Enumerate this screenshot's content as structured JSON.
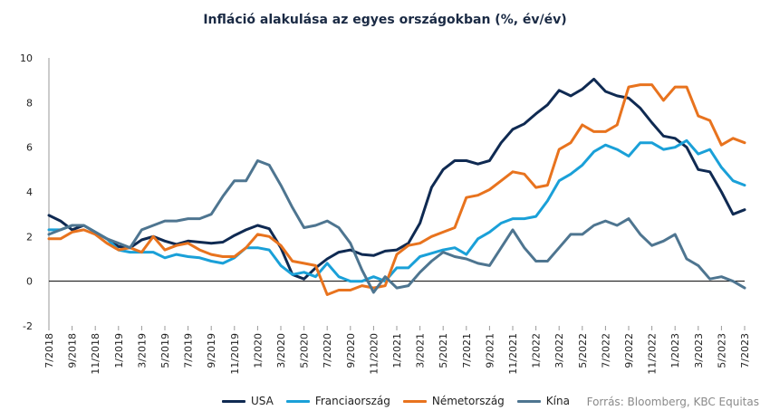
{
  "chart_data": {
    "type": "line",
    "title": "Infláció alakulása az egyes országokban (%, év/év)",
    "xlabel": "",
    "ylabel": "",
    "ylim": [
      -2,
      10
    ],
    "yticks": [
      "-2",
      "0",
      "2",
      "4",
      "6",
      "8",
      "10"
    ],
    "grid": false,
    "legend_position": "bottom",
    "source": "Forrás: Bloomberg, KBC Equitas",
    "x_tick_labels": [
      "7/2018",
      "9/2018",
      "11/2018",
      "1/2019",
      "3/2019",
      "5/2019",
      "7/2019",
      "9/2019",
      "11/2019",
      "1/2020",
      "3/2020",
      "5/2020",
      "7/2020",
      "9/2020",
      "11/2020",
      "1/2021",
      "3/2021",
      "5/2021",
      "7/2021",
      "9/2021",
      "11/2021",
      "1/2022",
      "3/2022",
      "5/2022",
      "7/2022",
      "9/2022",
      "11/2022",
      "1/2023",
      "3/2023",
      "5/2023",
      "7/2023"
    ],
    "x": [
      "7/2018",
      "8/2018",
      "9/2018",
      "10/2018",
      "11/2018",
      "12/2018",
      "1/2019",
      "2/2019",
      "3/2019",
      "4/2019",
      "5/2019",
      "6/2019",
      "7/2019",
      "8/2019",
      "9/2019",
      "10/2019",
      "11/2019",
      "12/2019",
      "1/2020",
      "2/2020",
      "3/2020",
      "4/2020",
      "5/2020",
      "6/2020",
      "7/2020",
      "8/2020",
      "9/2020",
      "10/2020",
      "11/2020",
      "12/2020",
      "1/2021",
      "2/2021",
      "3/2021",
      "4/2021",
      "5/2021",
      "6/2021",
      "7/2021",
      "8/2021",
      "9/2021",
      "10/2021",
      "11/2021",
      "12/2021",
      "1/2022",
      "2/2022",
      "3/2022",
      "4/2022",
      "5/2022",
      "6/2022",
      "7/2022",
      "8/2022",
      "9/2022",
      "10/2022",
      "11/2022",
      "12/2022",
      "1/2023",
      "2/2023",
      "3/2023",
      "4/2023",
      "5/2023",
      "6/2023",
      "7/2023"
    ],
    "series": [
      {
        "name": "USA",
        "color": "#0f2a52",
        "values": [
          2.95,
          2.7,
          2.3,
          2.5,
          2.2,
          1.9,
          1.55,
          1.5,
          1.85,
          2.0,
          1.8,
          1.65,
          1.8,
          1.75,
          1.7,
          1.75,
          2.05,
          2.3,
          2.5,
          2.35,
          1.5,
          0.3,
          0.1,
          0.6,
          1.0,
          1.3,
          1.4,
          1.2,
          1.15,
          1.35,
          1.4,
          1.7,
          2.6,
          4.2,
          5.0,
          5.4,
          5.4,
          5.25,
          5.4,
          6.2,
          6.8,
          7.05,
          7.5,
          7.9,
          8.55,
          8.3,
          8.6,
          9.05,
          8.5,
          8.3,
          8.2,
          7.75,
          7.1,
          6.5,
          6.4,
          6.0,
          5.0,
          4.9,
          4.0,
          3.0,
          3.2
        ]
      },
      {
        "name": "Franciaország",
        "color": "#1aa0d8",
        "values": [
          2.3,
          2.3,
          2.5,
          2.5,
          2.2,
          1.9,
          1.4,
          1.3,
          1.3,
          1.3,
          1.05,
          1.2,
          1.1,
          1.05,
          0.9,
          0.8,
          1.05,
          1.5,
          1.5,
          1.4,
          0.7,
          0.3,
          0.4,
          0.2,
          0.8,
          0.2,
          0.0,
          0.0,
          0.2,
          0.0,
          0.6,
          0.6,
          1.1,
          1.25,
          1.4,
          1.5,
          1.2,
          1.9,
          2.2,
          2.6,
          2.8,
          2.8,
          2.9,
          3.6,
          4.5,
          4.8,
          5.2,
          5.8,
          6.1,
          5.9,
          5.6,
          6.2,
          6.2,
          5.9,
          6.0,
          6.3,
          5.7,
          5.9,
          5.1,
          4.5,
          4.3
        ]
      },
      {
        "name": "Németország",
        "color": "#e8731e",
        "values": [
          1.9,
          1.9,
          2.2,
          2.3,
          2.1,
          1.7,
          1.4,
          1.5,
          1.3,
          2.0,
          1.4,
          1.6,
          1.7,
          1.4,
          1.2,
          1.1,
          1.1,
          1.5,
          2.1,
          2.0,
          1.6,
          0.9,
          0.8,
          0.7,
          -0.6,
          -0.4,
          -0.4,
          -0.2,
          -0.3,
          -0.2,
          1.2,
          1.6,
          1.7,
          2.0,
          2.2,
          2.4,
          3.75,
          3.85,
          4.1,
          4.5,
          4.9,
          4.8,
          4.2,
          4.3,
          5.9,
          6.2,
          7.0,
          6.7,
          6.7,
          7.0,
          8.7,
          8.8,
          8.8,
          8.1,
          8.7,
          8.7,
          7.4,
          7.2,
          6.1,
          6.4,
          6.2
        ]
      },
      {
        "name": "Kína",
        "color": "#4e7590",
        "values": [
          2.1,
          2.3,
          2.5,
          2.5,
          2.2,
          1.9,
          1.7,
          1.5,
          2.3,
          2.5,
          2.7,
          2.7,
          2.8,
          2.8,
          3.0,
          3.8,
          4.5,
          4.5,
          5.4,
          5.2,
          4.3,
          3.3,
          2.4,
          2.5,
          2.7,
          2.4,
          1.7,
          0.5,
          -0.5,
          0.2,
          -0.3,
          -0.2,
          0.4,
          0.9,
          1.3,
          1.1,
          1.0,
          0.8,
          0.7,
          1.5,
          2.3,
          1.5,
          0.9,
          0.9,
          1.5,
          2.1,
          2.1,
          2.5,
          2.7,
          2.5,
          2.8,
          2.1,
          1.6,
          1.8,
          2.1,
          1.0,
          0.7,
          0.1,
          0.2,
          0.0,
          -0.3
        ]
      }
    ]
  }
}
